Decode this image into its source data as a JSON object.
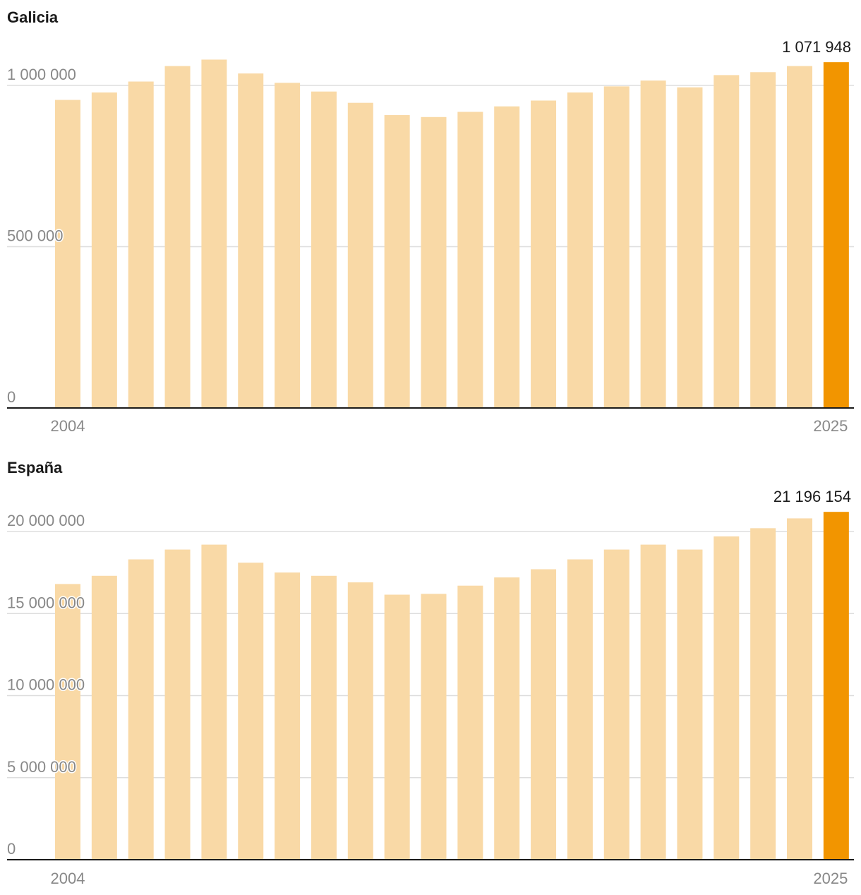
{
  "colors": {
    "bar": "#f9d9a6",
    "highlight": "#f29500",
    "grid": "#dddddd",
    "axis": "#1a1a1a"
  },
  "chart_data": [
    {
      "type": "bar",
      "title": "Galicia",
      "categories": [
        "2004",
        "2005",
        "2006",
        "2007",
        "2008",
        "2009",
        "2010",
        "2011",
        "2012",
        "2013",
        "2014",
        "2015",
        "2016",
        "2017",
        "2018",
        "2019",
        "2020",
        "2021",
        "2022",
        "2023",
        "2024",
        "2025"
      ],
      "x_tick_labels": [
        "2004",
        "2025"
      ],
      "values": [
        955000,
        978000,
        1012000,
        1060000,
        1080000,
        1037000,
        1008000,
        981000,
        946000,
        908000,
        902000,
        918000,
        935000,
        953000,
        978000,
        997000,
        1015000,
        994000,
        1032000,
        1041000,
        1060000,
        1071948
      ],
      "y_ticks": [
        0,
        500000,
        1000000
      ],
      "y_tick_labels": [
        "0",
        "500 000",
        "1 000 000"
      ],
      "ylim": [
        0,
        1000000
      ],
      "highlight_label": "1 071 948",
      "grid": true
    },
    {
      "type": "bar",
      "title": "España",
      "categories": [
        "2004",
        "2005",
        "2006",
        "2007",
        "2008",
        "2009",
        "2010",
        "2011",
        "2012",
        "2013",
        "2014",
        "2015",
        "2016",
        "2017",
        "2018",
        "2019",
        "2020",
        "2021",
        "2022",
        "2023",
        "2024",
        "2025"
      ],
      "x_tick_labels": [
        "2004",
        "2025"
      ],
      "values": [
        16800000,
        17300000,
        18300000,
        18900000,
        19200000,
        18100000,
        17500000,
        17300000,
        16900000,
        16150000,
        16200000,
        16700000,
        17200000,
        17700000,
        18300000,
        18900000,
        19200000,
        18900000,
        19700000,
        20200000,
        20800000,
        21196154
      ],
      "y_ticks": [
        0,
        5000000,
        10000000,
        15000000,
        20000000
      ],
      "y_tick_labels": [
        "0",
        "5 000 000",
        "10 000 000",
        "15 000 000",
        "20 000 000"
      ],
      "ylim": [
        0,
        20000000
      ],
      "highlight_label": "21 196 154",
      "grid": true
    }
  ]
}
